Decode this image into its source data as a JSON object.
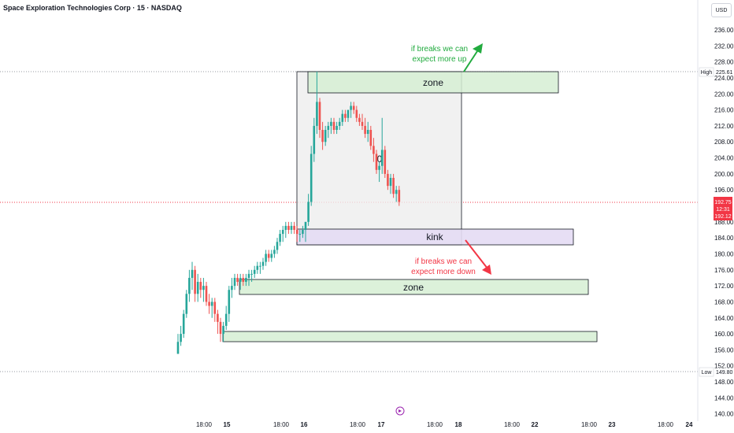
{
  "title": "Space Exploration Technologies Corp · 15 · NASDAQ",
  "currency": "USD",
  "colors": {
    "up": "#26a69a",
    "down": "#ef5350",
    "price_tag": "#f23645",
    "zone_fill": "#d6efd4",
    "kink_fill": "#e4dcf4",
    "range_fill": "#eeeeee",
    "annotation_up": "#22ab3f",
    "annotation_down": "#f23645"
  },
  "icons": {
    "replay": "replay-icon"
  },
  "axis": {
    "y_ticks": [
      "236.00",
      "232.00",
      "228.00",
      "224.00",
      "220.00",
      "216.00",
      "212.00",
      "208.00",
      "204.00",
      "200.00",
      "196.00",
      "188.00",
      "184.00",
      "180.00",
      "176.00",
      "172.00",
      "168.00",
      "164.00",
      "160.00",
      "156.00",
      "152.00",
      "148.00",
      "144.00",
      "140.00"
    ],
    "x_ticks": [
      {
        "label": "18:00",
        "bold": false
      },
      {
        "label": "15",
        "bold": true
      },
      {
        "label": "18:00",
        "bold": false
      },
      {
        "label": "16",
        "bold": true
      },
      {
        "label": "18:00",
        "bold": false
      },
      {
        "label": "17",
        "bold": true
      },
      {
        "label": "18:00",
        "bold": false
      },
      {
        "label": "18",
        "bold": true
      },
      {
        "label": "18:00",
        "bold": false
      },
      {
        "label": "22",
        "bold": true
      },
      {
        "label": "18:00",
        "bold": false
      },
      {
        "label": "23",
        "bold": true
      },
      {
        "label": "18:00",
        "bold": false
      },
      {
        "label": "24",
        "bold": true
      }
    ]
  },
  "tags": {
    "high_label": "High",
    "high_value": "225.61",
    "low_label": "Low",
    "low_value": "149.80",
    "price": "192.75",
    "countdown": "12:31",
    "price2": "192.12"
  },
  "boxes": {
    "zone_top": "zone",
    "kink": "kink",
    "zone_mid": "zone"
  },
  "annotations": {
    "up_line1": "if breaks we can",
    "up_line2": "expect more up",
    "down_line1": "if breaks we can",
    "down_line2": "expect more down"
  },
  "range_label": "0",
  "chart_data": {
    "type": "candlestick",
    "title": "Space Exploration Technologies Corp · 15 · NASDAQ",
    "ylim": [
      140,
      238
    ],
    "high": 225.61,
    "low": 149.8,
    "last_price": 192.75,
    "x_labels": [
      "18:00",
      "15",
      "18:00",
      "16",
      "18:00",
      "17",
      "18:00",
      "18",
      "18:00",
      "22",
      "18:00",
      "23",
      "18:00",
      "24"
    ],
    "levels": [
      {
        "label": "zone",
        "low": 220.5,
        "high": 225.6
      },
      {
        "label": "kink",
        "low": 182.0,
        "high": 186.0
      },
      {
        "label": "zone",
        "low": 169.3,
        "high": 173.0
      },
      {
        "label": "",
        "low": 157.5,
        "high": 160.5
      }
    ],
    "series": [
      {
        "values": [
          [
            155,
            160,
            155,
            158
          ],
          [
            158,
            162,
            157,
            160
          ],
          [
            160,
            166,
            159,
            165
          ],
          [
            165,
            171,
            164,
            170
          ],
          [
            170,
            176,
            168,
            174
          ],
          [
            174,
            178,
            171,
            176
          ],
          [
            176,
            177,
            168,
            170
          ],
          [
            170,
            175,
            168,
            173
          ],
          [
            173,
            174,
            169,
            171
          ],
          [
            171,
            174,
            168,
            172
          ],
          [
            172,
            173,
            167,
            168
          ],
          [
            168,
            170,
            165,
            167
          ],
          [
            167,
            169,
            164,
            168
          ],
          [
            168,
            169,
            163,
            165
          ],
          [
            165,
            166,
            160,
            163
          ],
          [
            163,
            164,
            158,
            160
          ],
          [
            160,
            163,
            158,
            162
          ],
          [
            162,
            167,
            161,
            165
          ],
          [
            165,
            172,
            163,
            171
          ],
          [
            171,
            174,
            169,
            172
          ],
          [
            172,
            175,
            171,
            174
          ],
          [
            174,
            175,
            172,
            173
          ],
          [
            173,
            175,
            171,
            174
          ],
          [
            174,
            175,
            172,
            173
          ],
          [
            173,
            175,
            172,
            174
          ],
          [
            174,
            176,
            172,
            175
          ],
          [
            175,
            176,
            173,
            175
          ],
          [
            175,
            177,
            174,
            176
          ],
          [
            176,
            178,
            175,
            177
          ],
          [
            177,
            178,
            175,
            177
          ],
          [
            177,
            179,
            176,
            178
          ],
          [
            178,
            181,
            177,
            180
          ],
          [
            180,
            181,
            178,
            179
          ],
          [
            179,
            181,
            178,
            180
          ],
          [
            180,
            182,
            179,
            181
          ],
          [
            181,
            184,
            180,
            183
          ],
          [
            183,
            186,
            182,
            185
          ],
          [
            185,
            187,
            183,
            186
          ],
          [
            186,
            188,
            184,
            187
          ],
          [
            187,
            188,
            185,
            186
          ],
          [
            186,
            188,
            185,
            187
          ],
          [
            187,
            188,
            185,
            186
          ],
          [
            186,
            187,
            183,
            185
          ],
          [
            185,
            186,
            183,
            185
          ],
          [
            185,
            187,
            184,
            186
          ],
          [
            186,
            188,
            183,
            188
          ],
          [
            188,
            195,
            187,
            193
          ],
          [
            193,
            207,
            192,
            205
          ],
          [
            205,
            214,
            203,
            212
          ],
          [
            212,
            225.6,
            210,
            218
          ],
          [
            218,
            219,
            209,
            211
          ],
          [
            211,
            213,
            206,
            208
          ],
          [
            208,
            212,
            207,
            211
          ],
          [
            211,
            213,
            209,
            212
          ],
          [
            212,
            214,
            210,
            213
          ],
          [
            213,
            214,
            210,
            211
          ],
          [
            211,
            213,
            210,
            212
          ],
          [
            212,
            214,
            211,
            213
          ],
          [
            213,
            216,
            212,
            215
          ],
          [
            215,
            216,
            213,
            214
          ],
          [
            214,
            216,
            213,
            216
          ],
          [
            216,
            218,
            214,
            217
          ],
          [
            217,
            218,
            215,
            216
          ],
          [
            216,
            217,
            213,
            214
          ],
          [
            214,
            215,
            212,
            213
          ],
          [
            213,
            215,
            211,
            212
          ],
          [
            212,
            214,
            209,
            210
          ],
          [
            210,
            213,
            208,
            211
          ],
          [
            211,
            212,
            206,
            207
          ],
          [
            207,
            209,
            203,
            205
          ],
          [
            205,
            206,
            200,
            201
          ],
          [
            201,
            203,
            198,
            202
          ],
          [
            202,
            214,
            200,
            206
          ],
          [
            206,
            207,
            199,
            200
          ],
          [
            200,
            201,
            196,
            197
          ],
          [
            197,
            200,
            195,
            199
          ],
          [
            199,
            200,
            194,
            195
          ],
          [
            195,
            197,
            193,
            196
          ],
          [
            196,
            197,
            192,
            193
          ]
        ]
      }
    ]
  }
}
